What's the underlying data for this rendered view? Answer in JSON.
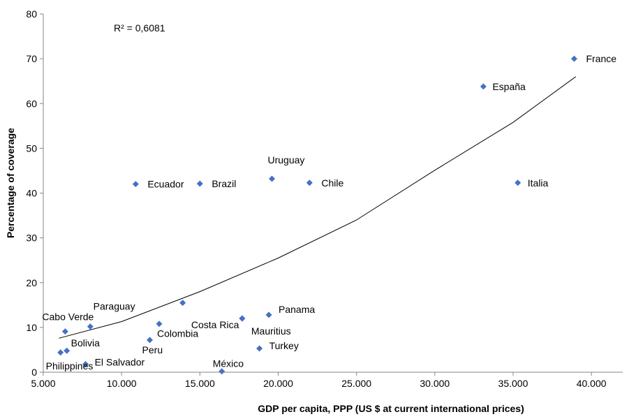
{
  "chart_data": {
    "type": "scatter",
    "xlabel": "GDP per capita, PPP (US $ at current international  prices)",
    "ylabel": "Percentage of coverage",
    "xlim": [
      5000,
      42000
    ],
    "ylim": [
      0,
      80
    ],
    "x_ticks": [
      5000,
      10000,
      15000,
      20000,
      25000,
      30000,
      35000,
      40000
    ],
    "x_tick_labels": [
      "5.000",
      "10.000",
      "15.000",
      "20.000",
      "25.000",
      "30.000",
      "35.000",
      "40.000"
    ],
    "y_ticks": [
      0,
      10,
      20,
      30,
      40,
      50,
      60,
      70,
      80
    ],
    "y_tick_labels": [
      "0",
      "10",
      "20",
      "30",
      "40",
      "50",
      "60",
      "70",
      "80"
    ],
    "grid": false,
    "annotation": "R² = 0,6081",
    "marker_color": "#4472C4",
    "points": [
      {
        "label": "France",
        "x": 38900,
        "y": 70.0
      },
      {
        "label": "España",
        "x": 33100,
        "y": 63.8
      },
      {
        "label": "Italia",
        "x": 35300,
        "y": 42.3
      },
      {
        "label": "Uruguay",
        "x": 19600,
        "y": 43.2
      },
      {
        "label": "Chile",
        "x": 22000,
        "y": 42.3
      },
      {
        "label": "Brazil",
        "x": 15000,
        "y": 42.1
      },
      {
        "label": "Ecuador",
        "x": 10900,
        "y": 42.0
      },
      {
        "label": "Paraguay",
        "x": 13900,
        "y": 15.5
      },
      {
        "label": "Costa Rica",
        "x": 17700,
        "y": 12.0
      },
      {
        "label": "Panama",
        "x": 19400,
        "y": 12.8
      },
      {
        "label": "Mauritius",
        "x": 17700,
        "y": 12.0
      },
      {
        "label": "Cabo Verde",
        "x": 6400,
        "y": 9.1
      },
      {
        "label": "Colombia",
        "x": 12400,
        "y": 10.8
      },
      {
        "label": "Turkey",
        "x": 18800,
        "y": 5.3
      },
      {
        "label": "Peru",
        "x": 11800,
        "y": 7.2
      },
      {
        "label": "Bolivia",
        "x": 6500,
        "y": 4.8
      },
      {
        "label": "Philippines",
        "x": 6100,
        "y": 4.4
      },
      {
        "label": "El Salvador",
        "x": 7700,
        "y": 1.8
      },
      {
        "label": "México",
        "x": 16400,
        "y": 0.2
      },
      {
        "label": "",
        "x": 8000,
        "y": 10.2
      }
    ],
    "trendline": {
      "type": "exponential",
      "x": [
        6000,
        10000,
        15000,
        20000,
        25000,
        30000,
        35000,
        39000
      ],
      "y": [
        7.6,
        11.3,
        18.0,
        25.5,
        34.0,
        45.1,
        55.8,
        66.0
      ]
    }
  }
}
